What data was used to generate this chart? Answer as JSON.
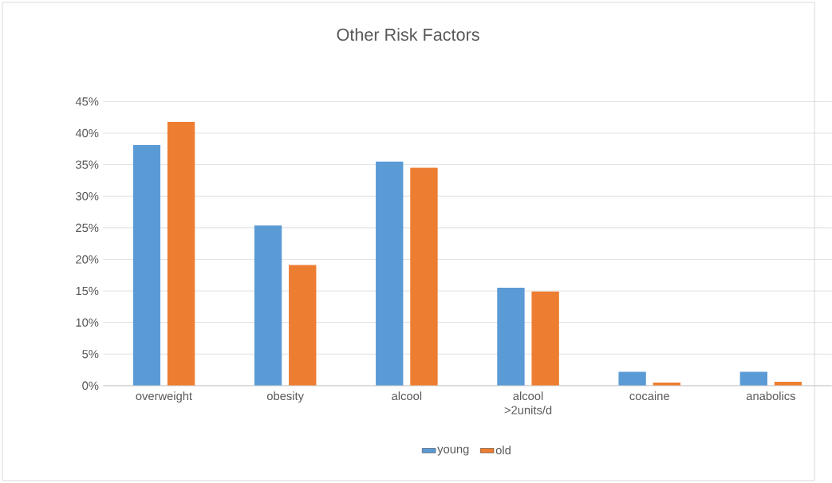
{
  "chart_data": {
    "type": "bar",
    "title": "Other Risk Factors",
    "categories": [
      "overweight",
      "obesity",
      "alcool",
      "alcool >2units/d",
      "cocaine",
      "anabolics"
    ],
    "series": [
      {
        "name": "young",
        "color": "#5b9bd5",
        "values": [
          38.1,
          25.4,
          35.5,
          15.5,
          2.2,
          2.2
        ]
      },
      {
        "name": "old",
        "color": "#ed7d31",
        "values": [
          41.8,
          19.1,
          34.5,
          14.9,
          0.5,
          0.6
        ]
      }
    ],
    "ylim": [
      0,
      45
    ],
    "yticks": [
      {
        "value": 0,
        "label": "0%"
      },
      {
        "value": 5,
        "label": "5%"
      },
      {
        "value": 10,
        "label": "10%"
      },
      {
        "value": 15,
        "label": "15%"
      },
      {
        "value": 20,
        "label": "20%"
      },
      {
        "value": 25,
        "label": "25%"
      },
      {
        "value": 30,
        "label": "30%"
      },
      {
        "value": 35,
        "label": "35%"
      },
      {
        "value": 40,
        "label": "40%"
      },
      {
        "value": 45,
        "label": "45%"
      }
    ],
    "grid": "y",
    "legend": "bottom"
  }
}
